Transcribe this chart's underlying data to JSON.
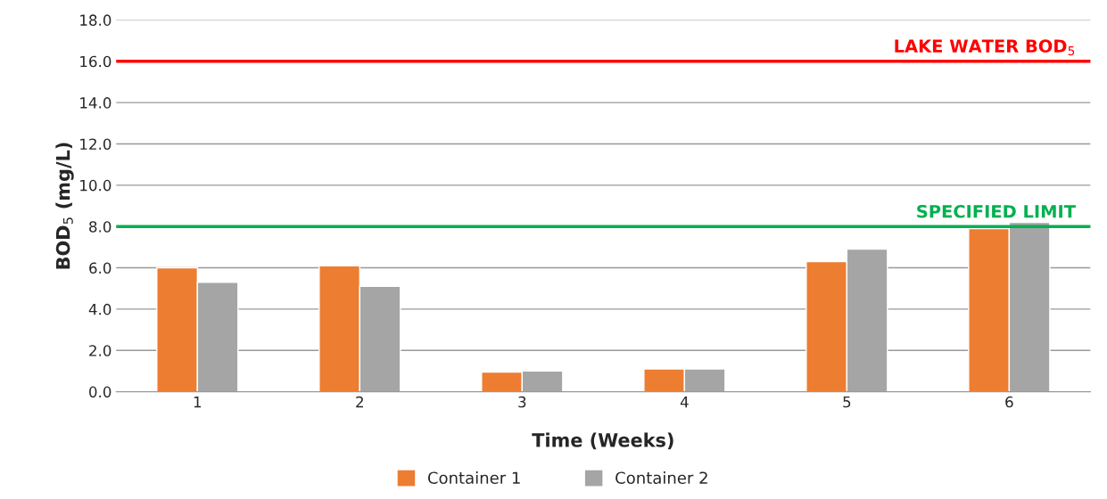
{
  "chart_data": {
    "type": "bar",
    "xlabel": "Time (Weeks)",
    "ylabel": "BOD$_{5}$ (mg/L)",
    "categories": [
      "1",
      "2",
      "3",
      "4",
      "5",
      "6"
    ],
    "series": [
      {
        "name": "Container 1",
        "color": "#ed7d31",
        "values": [
          6.0,
          6.1,
          0.95,
          1.1,
          6.3,
          7.9
        ]
      },
      {
        "name": "Container 2",
        "color": "#a5a5a5",
        "values": [
          5.3,
          5.1,
          1.0,
          1.1,
          6.9,
          8.2
        ]
      }
    ],
    "ylim": [
      0,
      18
    ],
    "yticks": [
      {
        "value": 0,
        "label": "0.0"
      },
      {
        "value": 2,
        "label": "2.0"
      },
      {
        "value": 4,
        "label": "4.0"
      },
      {
        "value": 6,
        "label": "6.0"
      },
      {
        "value": 8,
        "label": "8.0"
      },
      {
        "value": 10,
        "label": "10.0"
      },
      {
        "value": 12,
        "label": "12.0"
      },
      {
        "value": 14,
        "label": "14.0"
      },
      {
        "value": 16,
        "label": "16.0"
      },
      {
        "value": 18,
        "label": "18.0"
      }
    ],
    "grid": "y",
    "legend": "bottom",
    "ref_lines": [
      {
        "axis": "y",
        "value": 16.0,
        "label": "LAKE WATER BOD$_{5}$",
        "color": "#ff0000"
      },
      {
        "axis": "y",
        "value": 8.0,
        "label": "SPECIFIED LIMIT",
        "color": "#00b050"
      }
    ]
  }
}
